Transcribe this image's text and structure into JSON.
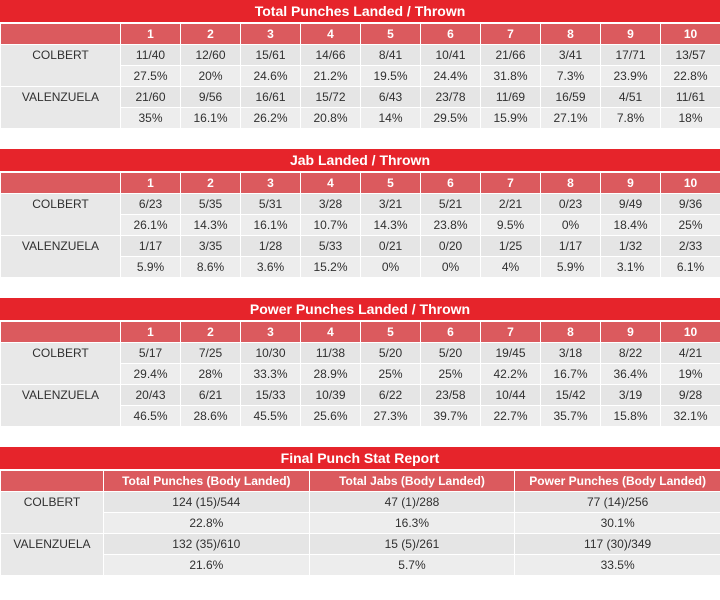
{
  "colors": {
    "title_bar_red": "#e6242b",
    "column_header_red": "#db5a5e",
    "cell_gray": "#e5e5e5",
    "pct_cell_gray": "#ededed",
    "header_text": "#ffffff",
    "body_text": "#303030"
  },
  "rounds": [
    "1",
    "2",
    "3",
    "4",
    "5",
    "6",
    "7",
    "8",
    "9",
    "10"
  ],
  "sections": [
    {
      "title": "Total Punches Landed / Thrown",
      "fighters": [
        {
          "name": "COLBERT",
          "values": [
            "11/40",
            "12/60",
            "15/61",
            "14/66",
            "8/41",
            "10/41",
            "21/66",
            "3/41",
            "17/71",
            "13/57"
          ],
          "pcts": [
            "27.5%",
            "20%",
            "24.6%",
            "21.2%",
            "19.5%",
            "24.4%",
            "31.8%",
            "7.3%",
            "23.9%",
            "22.8%"
          ]
        },
        {
          "name": "VALENZUELA",
          "values": [
            "21/60",
            "9/56",
            "16/61",
            "15/72",
            "6/43",
            "23/78",
            "11/69",
            "16/59",
            "4/51",
            "11/61"
          ],
          "pcts": [
            "35%",
            "16.1%",
            "26.2%",
            "20.8%",
            "14%",
            "29.5%",
            "15.9%",
            "27.1%",
            "7.8%",
            "18%"
          ]
        }
      ]
    },
    {
      "title": "Jab Landed / Thrown",
      "fighters": [
        {
          "name": "COLBERT",
          "values": [
            "6/23",
            "5/35",
            "5/31",
            "3/28",
            "3/21",
            "5/21",
            "2/21",
            "0/23",
            "9/49",
            "9/36"
          ],
          "pcts": [
            "26.1%",
            "14.3%",
            "16.1%",
            "10.7%",
            "14.3%",
            "23.8%",
            "9.5%",
            "0%",
            "18.4%",
            "25%"
          ]
        },
        {
          "name": "VALENZUELA",
          "values": [
            "1/17",
            "3/35",
            "1/28",
            "5/33",
            "0/21",
            "0/20",
            "1/25",
            "1/17",
            "1/32",
            "2/33"
          ],
          "pcts": [
            "5.9%",
            "8.6%",
            "3.6%",
            "15.2%",
            "0%",
            "0%",
            "4%",
            "5.9%",
            "3.1%",
            "6.1%"
          ]
        }
      ]
    },
    {
      "title": "Power Punches Landed / Thrown",
      "fighters": [
        {
          "name": "COLBERT",
          "values": [
            "5/17",
            "7/25",
            "10/30",
            "11/38",
            "5/20",
            "5/20",
            "19/45",
            "3/18",
            "8/22",
            "4/21"
          ],
          "pcts": [
            "29.4%",
            "28%",
            "33.3%",
            "28.9%",
            "25%",
            "25%",
            "42.2%",
            "16.7%",
            "36.4%",
            "19%"
          ]
        },
        {
          "name": "VALENZUELA",
          "values": [
            "20/43",
            "6/21",
            "15/33",
            "10/39",
            "6/22",
            "23/58",
            "10/44",
            "15/42",
            "3/19",
            "9/28"
          ],
          "pcts": [
            "46.5%",
            "28.6%",
            "45.5%",
            "25.6%",
            "27.3%",
            "39.7%",
            "22.7%",
            "35.7%",
            "15.8%",
            "32.1%"
          ]
        }
      ]
    }
  ],
  "final_report": {
    "title": "Final Punch Stat Report",
    "columns": [
      "Total Punches (Body Landed)",
      "Total Jabs (Body Landed)",
      "Power Punches (Body Landed)"
    ],
    "fighters": [
      {
        "name": "COLBERT",
        "values": [
          "124 (15)/544",
          "47 (1)/288",
          "77 (14)/256"
        ],
        "pcts": [
          "22.8%",
          "16.3%",
          "30.1%"
        ]
      },
      {
        "name": "VALENZUELA",
        "values": [
          "132 (35)/610",
          "15 (5)/261",
          "117 (30)/349"
        ],
        "pcts": [
          "21.6%",
          "5.7%",
          "33.5%"
        ]
      }
    ]
  }
}
